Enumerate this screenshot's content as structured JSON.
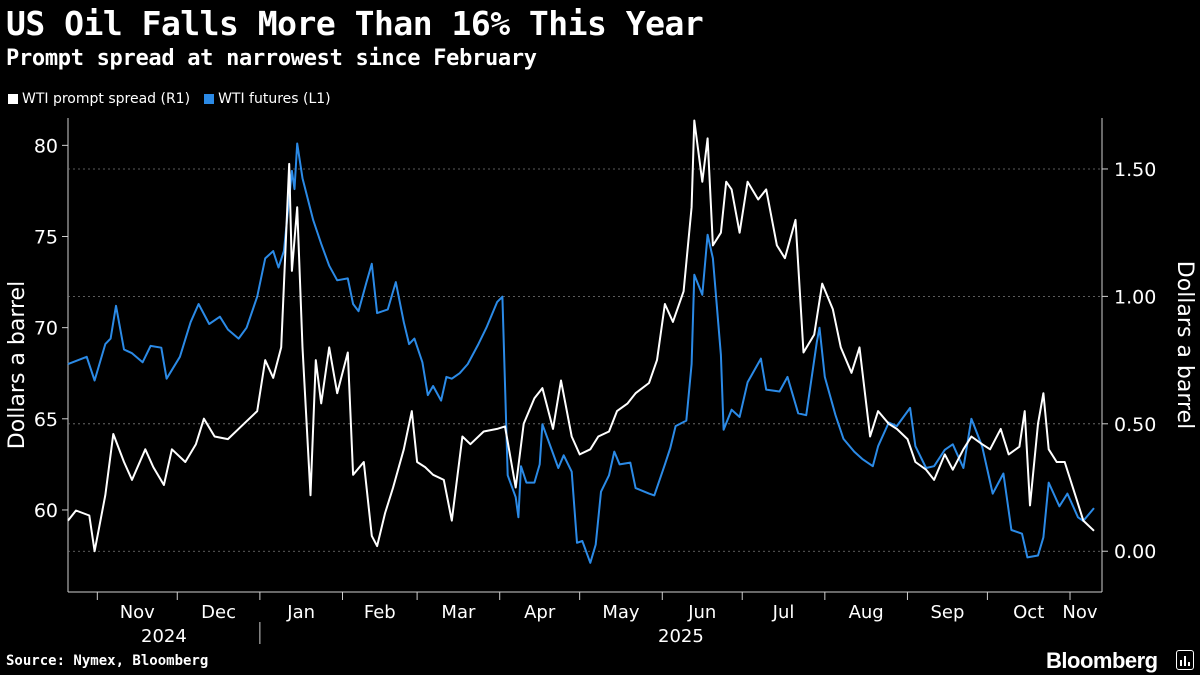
{
  "header": {
    "title": "US Oil Falls More Than 16% This Year",
    "subtitle": "Prompt spread at narrowest since February"
  },
  "legend": [
    {
      "label": "WTI prompt spread (R1)",
      "color": "#ffffff"
    },
    {
      "label": "WTI futures (L1)",
      "color": "#2b8ae6"
    }
  ],
  "footer": {
    "source": "Source: Nymex, Bloomberg",
    "brand": "Bloomberg"
  },
  "chart_data": {
    "type": "line",
    "title": "US Oil Falls More Than 16% This Year",
    "subtitle": "Prompt spread at narrowest since February",
    "y_left": {
      "label": "Dollars a barrel",
      "ylim": [
        55.5,
        81.5
      ],
      "ticks": [
        60,
        65,
        70,
        75,
        80
      ]
    },
    "y_right": {
      "label": "Dollars a barrel",
      "ylim": [
        -0.16,
        1.7
      ],
      "ticks": [
        "0.00",
        "0.50",
        "1.00",
        "1.50"
      ],
      "grid": true
    },
    "x_axis": {
      "months": [
        "Nov",
        "Dec",
        "Jan",
        "Feb",
        "Mar",
        "Apr",
        "May",
        "Jun",
        "Jul",
        "Aug",
        "Sep",
        "Oct",
        "Nov"
      ],
      "years": [
        "2024",
        "2025"
      ],
      "range": [
        "2024-10-21",
        "2025-11-10"
      ]
    },
    "series": [
      {
        "name": "WTI futures (L1)",
        "axis": "left",
        "color": "#2b8ae6",
        "points": [
          [
            "2024-10-21",
            68.0
          ],
          [
            "2024-10-28",
            68.4
          ],
          [
            "2024-10-31",
            67.1
          ],
          [
            "2024-11-04",
            69.1
          ],
          [
            "2024-11-06",
            69.4
          ],
          [
            "2024-11-08",
            71.2
          ],
          [
            "2024-11-11",
            68.8
          ],
          [
            "2024-11-14",
            68.6
          ],
          [
            "2024-11-18",
            68.1
          ],
          [
            "2024-11-21",
            69.0
          ],
          [
            "2024-11-25",
            68.9
          ],
          [
            "2024-11-27",
            67.2
          ],
          [
            "2024-12-02",
            68.4
          ],
          [
            "2024-12-06",
            70.3
          ],
          [
            "2024-12-09",
            71.3
          ],
          [
            "2024-12-13",
            70.2
          ],
          [
            "2024-12-17",
            70.6
          ],
          [
            "2024-12-20",
            69.9
          ],
          [
            "2024-12-24",
            69.4
          ],
          [
            "2024-12-27",
            70.0
          ],
          [
            "2024-12-31",
            71.7
          ],
          [
            "2025-01-03",
            73.8
          ],
          [
            "2025-01-06",
            74.2
          ],
          [
            "2025-01-08",
            73.3
          ],
          [
            "2025-01-10",
            74.2
          ],
          [
            "2025-01-13",
            78.6
          ],
          [
            "2025-01-14",
            77.6
          ],
          [
            "2025-01-15",
            80.1
          ],
          [
            "2025-01-17",
            78.2
          ],
          [
            "2025-01-21",
            75.9
          ],
          [
            "2025-01-24",
            74.6
          ],
          [
            "2025-01-27",
            73.4
          ],
          [
            "2025-01-30",
            72.6
          ],
          [
            "2025-02-03",
            72.7
          ],
          [
            "2025-02-05",
            71.3
          ],
          [
            "2025-02-07",
            70.9
          ],
          [
            "2025-02-10",
            72.5
          ],
          [
            "2025-02-12",
            73.5
          ],
          [
            "2025-02-14",
            70.8
          ],
          [
            "2025-02-18",
            71.0
          ],
          [
            "2025-02-21",
            72.5
          ],
          [
            "2025-02-24",
            70.3
          ],
          [
            "2025-02-26",
            69.1
          ],
          [
            "2025-02-28",
            69.4
          ],
          [
            "2025-03-03",
            68.1
          ],
          [
            "2025-03-05",
            66.3
          ],
          [
            "2025-03-07",
            66.8
          ],
          [
            "2025-03-10",
            66.0
          ],
          [
            "2025-03-12",
            67.3
          ],
          [
            "2025-03-14",
            67.2
          ],
          [
            "2025-03-17",
            67.5
          ],
          [
            "2025-03-20",
            68.0
          ],
          [
            "2025-03-24",
            69.1
          ],
          [
            "2025-03-27",
            70.0
          ],
          [
            "2025-03-31",
            71.4
          ],
          [
            "2025-04-02",
            71.7
          ],
          [
            "2025-04-03",
            66.9
          ],
          [
            "2025-04-04",
            61.9
          ],
          [
            "2025-04-07",
            60.7
          ],
          [
            "2025-04-08",
            59.6
          ],
          [
            "2025-04-09",
            62.4
          ],
          [
            "2025-04-11",
            61.5
          ],
          [
            "2025-04-14",
            61.5
          ],
          [
            "2025-04-16",
            62.5
          ],
          [
            "2025-04-17",
            64.7
          ],
          [
            "2025-04-21",
            63.1
          ],
          [
            "2025-04-23",
            62.3
          ],
          [
            "2025-04-25",
            63.0
          ],
          [
            "2025-04-28",
            62.1
          ],
          [
            "2025-04-30",
            58.2
          ],
          [
            "2025-05-02",
            58.3
          ],
          [
            "2025-05-05",
            57.1
          ],
          [
            "2025-05-07",
            58.1
          ],
          [
            "2025-05-09",
            61.0
          ],
          [
            "2025-05-12",
            61.9
          ],
          [
            "2025-05-14",
            63.2
          ],
          [
            "2025-05-16",
            62.5
          ],
          [
            "2025-05-20",
            62.6
          ],
          [
            "2025-05-22",
            61.2
          ],
          [
            "2025-05-27",
            60.9
          ],
          [
            "2025-05-29",
            60.8
          ],
          [
            "2025-06-02",
            62.5
          ],
          [
            "2025-06-04",
            63.4
          ],
          [
            "2025-06-06",
            64.6
          ],
          [
            "2025-06-10",
            64.9
          ],
          [
            "2025-06-12",
            68.0
          ],
          [
            "2025-06-13",
            72.9
          ],
          [
            "2025-06-16",
            71.8
          ],
          [
            "2025-06-18",
            75.1
          ],
          [
            "2025-06-20",
            73.8
          ],
          [
            "2025-06-23",
            68.5
          ],
          [
            "2025-06-24",
            64.4
          ],
          [
            "2025-06-27",
            65.5
          ],
          [
            "2025-06-30",
            65.1
          ],
          [
            "2025-07-03",
            67.0
          ],
          [
            "2025-07-08",
            68.3
          ],
          [
            "2025-07-10",
            66.6
          ],
          [
            "2025-07-15",
            66.5
          ],
          [
            "2025-07-18",
            67.3
          ],
          [
            "2025-07-22",
            65.3
          ],
          [
            "2025-07-25",
            65.2
          ],
          [
            "2025-07-29",
            69.2
          ],
          [
            "2025-07-30",
            70.0
          ],
          [
            "2025-08-01",
            67.3
          ],
          [
            "2025-08-05",
            65.2
          ],
          [
            "2025-08-08",
            63.9
          ],
          [
            "2025-08-12",
            63.2
          ],
          [
            "2025-08-15",
            62.8
          ],
          [
            "2025-08-19",
            62.4
          ],
          [
            "2025-08-21",
            63.5
          ],
          [
            "2025-08-25",
            64.8
          ],
          [
            "2025-08-28",
            64.6
          ],
          [
            "2025-09-02",
            65.6
          ],
          [
            "2025-09-04",
            63.5
          ],
          [
            "2025-09-08",
            62.3
          ],
          [
            "2025-09-11",
            62.4
          ],
          [
            "2025-09-15",
            63.3
          ],
          [
            "2025-09-18",
            63.6
          ],
          [
            "2025-09-22",
            62.3
          ],
          [
            "2025-09-25",
            65.0
          ],
          [
            "2025-09-29",
            63.5
          ],
          [
            "2025-10-01",
            62.2
          ],
          [
            "2025-10-03",
            60.9
          ],
          [
            "2025-10-07",
            62.0
          ],
          [
            "2025-10-10",
            58.9
          ],
          [
            "2025-10-14",
            58.7
          ],
          [
            "2025-10-16",
            57.4
          ],
          [
            "2025-10-20",
            57.5
          ],
          [
            "2025-10-22",
            58.5
          ],
          [
            "2025-10-24",
            61.5
          ],
          [
            "2025-10-28",
            60.2
          ],
          [
            "2025-10-31",
            60.9
          ],
          [
            "2025-11-04",
            59.6
          ],
          [
            "2025-11-06",
            59.4
          ],
          [
            "2025-11-10",
            60.1
          ]
        ]
      },
      {
        "name": "WTI prompt spread (R1)",
        "axis": "right",
        "color": "#ffffff",
        "points": [
          [
            "2024-10-21",
            0.12
          ],
          [
            "2024-10-24",
            0.16
          ],
          [
            "2024-10-29",
            0.14
          ],
          [
            "2024-10-31",
            0.0
          ],
          [
            "2024-11-04",
            0.22
          ],
          [
            "2024-11-07",
            0.46
          ],
          [
            "2024-11-11",
            0.35
          ],
          [
            "2024-11-14",
            0.28
          ],
          [
            "2024-11-19",
            0.4
          ],
          [
            "2024-11-22",
            0.33
          ],
          [
            "2024-11-26",
            0.26
          ],
          [
            "2024-11-29",
            0.4
          ],
          [
            "2024-12-04",
            0.35
          ],
          [
            "2024-12-08",
            0.42
          ],
          [
            "2024-12-11",
            0.52
          ],
          [
            "2024-12-15",
            0.45
          ],
          [
            "2024-12-20",
            0.44
          ],
          [
            "2024-12-26",
            0.5
          ],
          [
            "2024-12-31",
            0.55
          ],
          [
            "2025-01-03",
            0.75
          ],
          [
            "2025-01-06",
            0.68
          ],
          [
            "2025-01-09",
            0.8
          ],
          [
            "2025-01-12",
            1.52
          ],
          [
            "2025-01-13",
            1.1
          ],
          [
            "2025-01-15",
            1.35
          ],
          [
            "2025-01-17",
            0.8
          ],
          [
            "2025-01-20",
            0.22
          ],
          [
            "2025-01-22",
            0.75
          ],
          [
            "2025-01-24",
            0.58
          ],
          [
            "2025-01-27",
            0.8
          ],
          [
            "2025-01-30",
            0.62
          ],
          [
            "2025-02-03",
            0.78
          ],
          [
            "2025-02-05",
            0.3
          ],
          [
            "2025-02-09",
            0.35
          ],
          [
            "2025-02-12",
            0.06
          ],
          [
            "2025-02-14",
            0.02
          ],
          [
            "2025-02-17",
            0.15
          ],
          [
            "2025-02-20",
            0.25
          ],
          [
            "2025-02-24",
            0.4
          ],
          [
            "2025-02-27",
            0.55
          ],
          [
            "2025-03-01",
            0.35
          ],
          [
            "2025-03-04",
            0.33
          ],
          [
            "2025-03-07",
            0.3
          ],
          [
            "2025-03-11",
            0.28
          ],
          [
            "2025-03-14",
            0.12
          ],
          [
            "2025-03-18",
            0.45
          ],
          [
            "2025-03-21",
            0.42
          ],
          [
            "2025-03-26",
            0.47
          ],
          [
            "2025-03-31",
            0.48
          ],
          [
            "2025-04-03",
            0.49
          ],
          [
            "2025-04-07",
            0.25
          ],
          [
            "2025-04-10",
            0.5
          ],
          [
            "2025-04-14",
            0.6
          ],
          [
            "2025-04-17",
            0.64
          ],
          [
            "2025-04-21",
            0.48
          ],
          [
            "2025-04-24",
            0.67
          ],
          [
            "2025-04-28",
            0.45
          ],
          [
            "2025-05-01",
            0.38
          ],
          [
            "2025-05-05",
            0.4
          ],
          [
            "2025-05-08",
            0.45
          ],
          [
            "2025-05-12",
            0.47
          ],
          [
            "2025-05-15",
            0.55
          ],
          [
            "2025-05-19",
            0.58
          ],
          [
            "2025-05-22",
            0.62
          ],
          [
            "2025-05-27",
            0.66
          ],
          [
            "2025-05-30",
            0.75
          ],
          [
            "2025-06-02",
            0.97
          ],
          [
            "2025-06-05",
            0.9
          ],
          [
            "2025-06-09",
            1.02
          ],
          [
            "2025-06-12",
            1.35
          ],
          [
            "2025-06-13",
            1.69
          ],
          [
            "2025-06-16",
            1.45
          ],
          [
            "2025-06-18",
            1.62
          ],
          [
            "2025-06-20",
            1.2
          ],
          [
            "2025-06-23",
            1.25
          ],
          [
            "2025-06-25",
            1.45
          ],
          [
            "2025-06-27",
            1.42
          ],
          [
            "2025-06-30",
            1.25
          ],
          [
            "2025-07-03",
            1.45
          ],
          [
            "2025-07-07",
            1.38
          ],
          [
            "2025-07-10",
            1.42
          ],
          [
            "2025-07-14",
            1.2
          ],
          [
            "2025-07-17",
            1.15
          ],
          [
            "2025-07-21",
            1.3
          ],
          [
            "2025-07-24",
            0.78
          ],
          [
            "2025-07-28",
            0.85
          ],
          [
            "2025-07-31",
            1.05
          ],
          [
            "2025-08-04",
            0.95
          ],
          [
            "2025-08-07",
            0.8
          ],
          [
            "2025-08-11",
            0.7
          ],
          [
            "2025-08-14",
            0.8
          ],
          [
            "2025-08-18",
            0.45
          ],
          [
            "2025-08-21",
            0.55
          ],
          [
            "2025-08-25",
            0.5
          ],
          [
            "2025-08-28",
            0.48
          ],
          [
            "2025-09-01",
            0.44
          ],
          [
            "2025-09-04",
            0.35
          ],
          [
            "2025-09-08",
            0.32
          ],
          [
            "2025-09-11",
            0.28
          ],
          [
            "2025-09-15",
            0.38
          ],
          [
            "2025-09-18",
            0.32
          ],
          [
            "2025-09-22",
            0.4
          ],
          [
            "2025-09-25",
            0.45
          ],
          [
            "2025-09-29",
            0.42
          ],
          [
            "2025-10-02",
            0.4
          ],
          [
            "2025-10-06",
            0.48
          ],
          [
            "2025-10-09",
            0.38
          ],
          [
            "2025-10-13",
            0.41
          ],
          [
            "2025-10-15",
            0.55
          ],
          [
            "2025-10-17",
            0.18
          ],
          [
            "2025-10-20",
            0.5
          ],
          [
            "2025-10-22",
            0.62
          ],
          [
            "2025-10-24",
            0.4
          ],
          [
            "2025-10-27",
            0.35
          ],
          [
            "2025-10-30",
            0.35
          ],
          [
            "2025-11-03",
            0.22
          ],
          [
            "2025-11-06",
            0.12
          ],
          [
            "2025-11-10",
            0.08
          ]
        ]
      }
    ]
  }
}
